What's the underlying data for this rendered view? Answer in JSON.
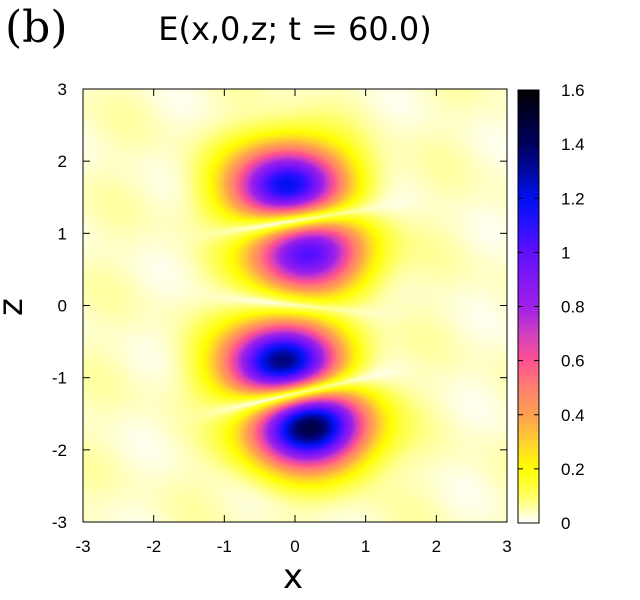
{
  "chart_data": {
    "type": "heatmap",
    "panel_label": "(b)",
    "title": "E(x,0,z; t = 60.0)",
    "xlabel": "x",
    "ylabel": "z",
    "xlim": [
      -3,
      3
    ],
    "ylim": [
      -3,
      3
    ],
    "xticks": [
      "-3",
      "-2",
      "-1",
      "0",
      "1",
      "2",
      "3"
    ],
    "yticks": [
      "-3",
      "-2",
      "-1",
      "0",
      "1",
      "2",
      "3"
    ],
    "colorbar": {
      "range": [
        0,
        1.6
      ],
      "ticks": [
        "0",
        "0.2",
        "0.4",
        "0.6",
        "0.8",
        "1",
        "1.2",
        "1.4",
        "1.6"
      ],
      "stops": [
        [
          0,
          "#ffffff"
        ],
        [
          0.1,
          "#ffff60"
        ],
        [
          0.2,
          "#ffff00"
        ],
        [
          0.3,
          "#ffd030"
        ],
        [
          0.4,
          "#ffa050"
        ],
        [
          0.5,
          "#ff8070"
        ],
        [
          0.6,
          "#ff5090"
        ],
        [
          0.7,
          "#d040c0"
        ],
        [
          0.8,
          "#a020e8"
        ],
        [
          1.0,
          "#6010ff"
        ],
        [
          1.1,
          "#2a10ff"
        ],
        [
          1.2,
          "#0010f0"
        ],
        [
          1.3,
          "#0008a0"
        ],
        [
          1.4,
          "#000060"
        ],
        [
          1.6,
          "#000000"
        ]
      ]
    },
    "lobes": [
      {
        "x": -0.1,
        "z": 1.63,
        "peak": 1.25,
        "sign": 1
      },
      {
        "x": 0.15,
        "z": 0.79,
        "peak": 1.1,
        "sign": -1
      },
      {
        "x": -0.16,
        "z": -0.82,
        "peak": 1.45,
        "sign": 1
      },
      {
        "x": 0.18,
        "z": -1.63,
        "peak": 1.55,
        "sign": -1
      }
    ],
    "background_level": 0.05
  }
}
